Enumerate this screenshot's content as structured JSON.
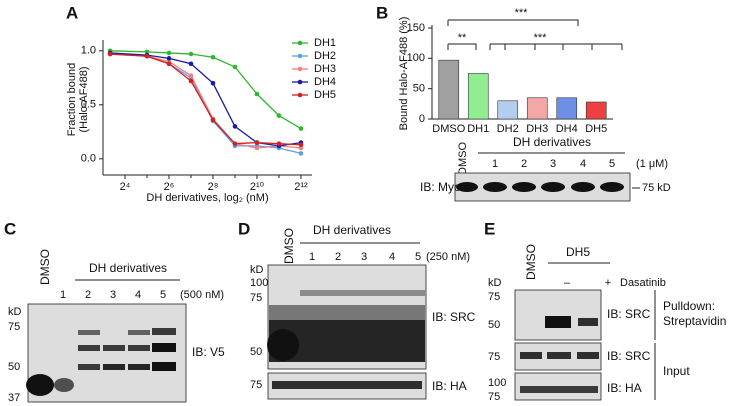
{
  "chart_data": [
    {
      "type": "line",
      "panel_label": "A",
      "x_label": "DH derivatives, log₂ (nM)",
      "y_label": [
        "Fraction bound",
        "(Halo-AF488)"
      ],
      "x": [
        10,
        32,
        64,
        128,
        256,
        512,
        1024,
        2048,
        4096
      ],
      "series": [
        {
          "name": "DH1",
          "color": "#2eb82e",
          "values": [
            1.0,
            0.99,
            0.98,
            0.97,
            0.94,
            0.85,
            0.6,
            0.4,
            0.28
          ]
        },
        {
          "name": "DH2",
          "color": "#5aa0e6",
          "values": [
            0.97,
            0.95,
            0.88,
            0.75,
            0.35,
            0.12,
            0.12,
            0.1,
            0.05
          ]
        },
        {
          "name": "DH3",
          "color": "#f08080",
          "values": [
            0.98,
            0.95,
            0.9,
            0.77,
            0.37,
            0.14,
            0.1,
            0.12,
            0.1
          ]
        },
        {
          "name": "DH4",
          "color": "#1a1aa6",
          "values": [
            0.98,
            0.96,
            0.93,
            0.88,
            0.7,
            0.3,
            0.15,
            0.12,
            0.15
          ]
        },
        {
          "name": "DH5",
          "color": "#d42020",
          "values": [
            0.97,
            0.95,
            0.88,
            0.72,
            0.36,
            0.14,
            0.15,
            0.14,
            0.13
          ]
        }
      ],
      "xscale": "log2",
      "xlim": [
        8,
        5800
      ],
      "xticks": [
        {
          "value": 16,
          "label": "2⁴"
        },
        {
          "value": 64,
          "label": "2⁶"
        },
        {
          "value": 256,
          "label": "2⁸"
        },
        {
          "value": 1024,
          "label": "2¹⁰"
        },
        {
          "value": 4096,
          "label": "2¹²"
        }
      ],
      "ylim": [
        -0.15,
        1.1
      ],
      "yticks": [
        {
          "value": 0,
          "label": "0.0"
        },
        {
          "value": 0.5,
          "label": "0.5"
        },
        {
          "value": 1,
          "label": "1.0"
        }
      ],
      "legend": "upper right"
    },
    {
      "type": "bar",
      "panel_label": "B",
      "y_label": "Bound Halo-AF488 (%)",
      "categories": [
        "DMSO",
        "DH1",
        "DH2",
        "DH3",
        "DH4",
        "DH5"
      ],
      "values": [
        97,
        75,
        30,
        35,
        35,
        28
      ],
      "colors": [
        "#a0a0a0",
        "#90ee90",
        "#b3cdef",
        "#f4a7a7",
        "#6f8fe6",
        "#ee4040"
      ],
      "ylim": [
        0,
        150
      ],
      "yticks": [
        0,
        50,
        100,
        150
      ],
      "annotations": [
        "***",
        "**",
        "***"
      ]
    }
  ],
  "blots": {
    "B": {
      "treatment": "DMSO",
      "group": "DH derivatives",
      "lanes": [
        "1",
        "2",
        "3",
        "4",
        "5"
      ],
      "dose": "(1 μM)",
      "probe": "IB: Myc",
      "marker": "75 kD"
    },
    "C": {
      "panel_label": "C",
      "treatment": "DMSO",
      "group": "DH derivatives",
      "lanes": [
        "1",
        "2",
        "3",
        "4",
        "5"
      ],
      "dose": "(500 nM)",
      "probe": "IB: V5",
      "kd": "kD",
      "markers": [
        "75",
        "50",
        "37"
      ]
    },
    "D": {
      "panel_label": "D",
      "treatment": "DMSO",
      "group": "DH derivatives",
      "lanes": [
        "1",
        "2",
        "3",
        "4",
        "5"
      ],
      "dose": "(250 nM)",
      "probes": [
        "IB: SRC",
        "IB: HA"
      ],
      "kd": "kD",
      "markers": [
        "100",
        "75",
        "50",
        "75"
      ]
    },
    "E": {
      "panel_label": "E",
      "treatment": "DMSO",
      "group": "DH5",
      "drug": "Dasatinib",
      "signs": [
        "–",
        "+"
      ],
      "probes": [
        "IB: SRC",
        "IB: SRC",
        "IB: HA"
      ],
      "sections": [
        "Pulldown:",
        "Streptavidin",
        "Input"
      ],
      "kd": "kD",
      "markers": [
        "75",
        "50",
        "75",
        "100",
        "75"
      ]
    }
  }
}
